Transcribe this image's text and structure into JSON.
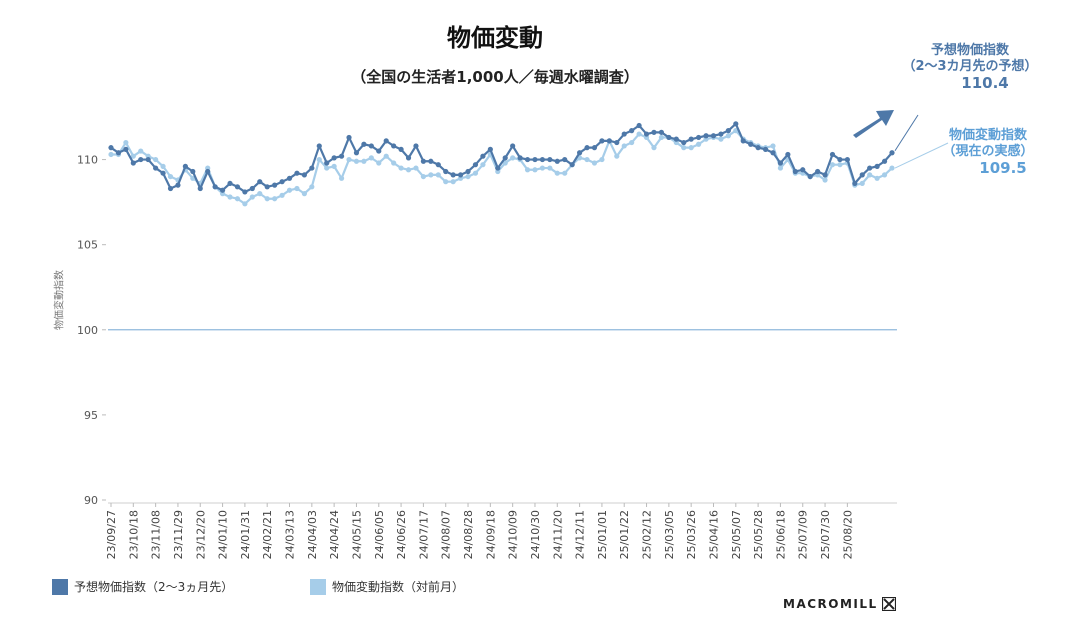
{
  "title": "物価変動",
  "subtitle": "（全国の生活者1,000人／毎週水曜調査）",
  "colors": {
    "forecast": "#4e78a8",
    "current": "#a6cde9",
    "baseline": "#8fb8dc",
    "arrow": "#4e78a8"
  },
  "annotations": {
    "forecast": {
      "line1": "予想物価指数",
      "line2": "（2～3カ月先の予想）",
      "value": "110.4"
    },
    "current": {
      "line1": "物価変動指数",
      "line2": "（現在の実感）",
      "value": "109.5"
    }
  },
  "legend": {
    "forecast": "予想物価指数（2～3ヵ月先）",
    "current": "物価変動指数（対前月）"
  },
  "brand": {
    "name": "MACROMILL",
    "icon": "macromill-logo-icon"
  },
  "chart_data": {
    "type": "line",
    "ylabel": "物価変動指数",
    "ylim": [
      90,
      113.5
    ],
    "yticks": [
      90,
      95,
      100,
      105,
      110
    ],
    "reference_line": 100,
    "x_tick_labels": [
      "23/09/27",
      "23/10/18",
      "23/11/08",
      "23/11/29",
      "23/12/20",
      "24/01/10",
      "24/01/31",
      "24/02/21",
      "24/03/13",
      "24/04/03",
      "24/04/24",
      "24/05/15",
      "24/06/05",
      "24/06/26",
      "24/07/17",
      "24/08/07",
      "24/08/28",
      "24/09/18",
      "24/10/09",
      "24/10/30",
      "24/11/20",
      "24/12/11",
      "25/01/01",
      "25/01/22",
      "25/02/12",
      "25/03/05",
      "25/03/26",
      "25/04/16",
      "25/05/07",
      "25/05/28",
      "25/06/18",
      "25/07/09",
      "25/07/30",
      "25/08/20"
    ],
    "x_start": "23/09/27",
    "x_interval_weeks": 1,
    "series": [
      {
        "name": "予想物価指数（2～3ヵ月先）",
        "values": [
          110.7,
          110.4,
          110.6,
          109.8,
          110.0,
          110.0,
          109.5,
          109.2,
          108.3,
          108.5,
          109.6,
          109.3,
          108.3,
          109.3,
          108.4,
          108.2,
          108.6,
          108.4,
          108.1,
          108.3,
          108.7,
          108.4,
          108.5,
          108.7,
          108.9,
          109.2,
          109.1,
          109.5,
          110.8,
          109.8,
          110.1,
          110.2,
          111.3,
          110.4,
          110.9,
          110.8,
          110.5,
          111.1,
          110.8,
          110.6,
          110.1,
          110.8,
          109.9,
          109.9,
          109.7,
          109.3,
          109.1,
          109.1,
          109.3,
          109.7,
          110.2,
          110.6,
          109.5,
          110.1,
          110.8,
          110.1,
          110.0,
          110.0,
          110.0,
          110.0,
          109.9,
          110.0,
          109.7,
          110.4,
          110.7,
          110.7,
          111.1,
          111.1,
          111.0,
          111.5,
          111.7,
          112.0,
          111.5,
          111.6,
          111.6,
          111.3,
          111.2,
          111.0,
          111.2,
          111.3,
          111.4,
          111.4,
          111.5,
          111.7,
          112.1,
          111.1,
          110.9,
          110.7,
          110.6,
          110.4,
          109.8,
          110.3,
          109.3,
          109.4,
          109.0,
          109.3,
          109.1,
          110.3,
          110.0,
          110.0,
          108.6,
          109.1,
          109.5,
          109.6,
          109.9,
          110.4
        ]
      },
      {
        "name": "物価変動指数（対前月）",
        "values": [
          110.3,
          110.3,
          111.0,
          110.2,
          110.5,
          110.2,
          110.0,
          109.6,
          109.0,
          108.8,
          109.4,
          108.9,
          108.6,
          109.5,
          108.4,
          108.0,
          107.8,
          107.7,
          107.4,
          107.8,
          108.0,
          107.7,
          107.7,
          107.9,
          108.2,
          108.3,
          108.0,
          108.4,
          110.0,
          109.5,
          109.6,
          108.9,
          110.0,
          109.9,
          109.9,
          110.1,
          109.8,
          110.2,
          109.8,
          109.5,
          109.4,
          109.5,
          109.0,
          109.1,
          109.1,
          108.7,
          108.7,
          108.9,
          109.0,
          109.2,
          109.7,
          110.3,
          109.3,
          109.8,
          110.1,
          110.0,
          109.4,
          109.4,
          109.5,
          109.5,
          109.2,
          109.2,
          109.7,
          110.1,
          110.0,
          109.8,
          110.0,
          111.1,
          110.2,
          110.8,
          111.0,
          111.5,
          111.3,
          110.7,
          111.3,
          111.3,
          111.0,
          110.7,
          110.7,
          110.9,
          111.2,
          111.3,
          111.2,
          111.4,
          111.7,
          111.2,
          111.0,
          110.8,
          110.7,
          110.8,
          109.5,
          110.0,
          109.2,
          109.2,
          109.0,
          109.1,
          108.8,
          109.7,
          109.7,
          109.8,
          108.5,
          108.6,
          109.1,
          108.9,
          109.1,
          109.5
        ]
      }
    ]
  }
}
